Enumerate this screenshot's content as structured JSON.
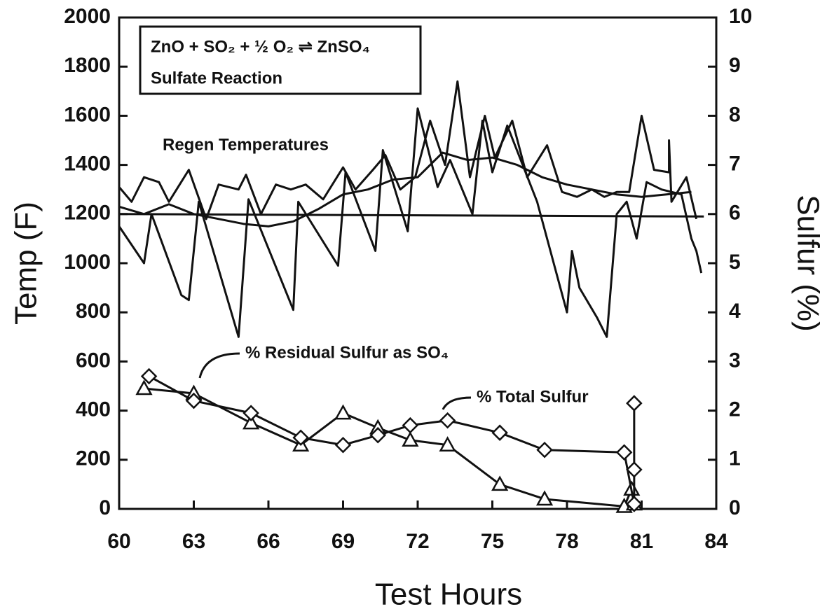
{
  "chart_data": {
    "type": "line",
    "xlabel": "Test Hours",
    "ylabel": "Temp (F)",
    "y2label": "Sulfur (%)",
    "xlim": [
      60,
      84
    ],
    "xticks": [
      60,
      63,
      66,
      69,
      72,
      75,
      78,
      81,
      84
    ],
    "ylim": [
      0,
      2000
    ],
    "yticks": [
      0,
      200,
      400,
      600,
      800,
      1000,
      1200,
      1400,
      1600,
      1800,
      2000
    ],
    "y2lim": [
      0,
      10
    ],
    "y2ticks": [
      0,
      1,
      2,
      3,
      4,
      5,
      6,
      7,
      8,
      9,
      10
    ],
    "annotations": [
      "ZnO + SO₂ + ½ O₂ ⇌ ZnSO₄",
      "Sulfate Reaction",
      "Regen Temperatures"
    ],
    "series": [
      {
        "color": "#111",
        "x": [
          60,
          61,
          61.3,
          62.5,
          62.8,
          63.2,
          64.8,
          65.2,
          67,
          67.2,
          68.8,
          69.1,
          70.3,
          70.6,
          71.6,
          72,
          72.8,
          73.3,
          74.2,
          74.6,
          75,
          75.6,
          76.8,
          77.2,
          78,
          78.2,
          78.5,
          79.2,
          79.6,
          80,
          80.4,
          80.8,
          81.2,
          81.8,
          82.6,
          83,
          83.2,
          83.4
        ],
        "values": [
          1150,
          1000,
          1200,
          870,
          850,
          1250,
          700,
          1260,
          810,
          1250,
          990,
          1370,
          1050,
          1460,
          1130,
          1630,
          1310,
          1420,
          1200,
          1580,
          1370,
          1560,
          1250,
          1100,
          800,
          1050,
          900,
          780,
          700,
          1200,
          1250,
          1100,
          1330,
          1300,
          1280,
          1100,
          1050,
          960
        ]
      },
      {
        "color": "#111",
        "x": [
          60,
          60.5,
          61,
          61.6,
          62,
          62.8,
          63.5,
          64,
          64.8,
          65.1,
          65.7,
          66.3,
          66.9,
          67.5,
          68.2,
          69,
          69.5,
          70.2,
          70.7,
          71.3,
          71.9,
          72.5,
          73.1,
          73.6,
          74.1,
          74.7,
          75.1,
          75.8,
          76.4,
          77.2,
          77.8,
          78.4,
          79,
          79.5,
          80,
          80.5,
          81,
          81.5,
          82.1,
          82.1,
          82.2,
          82.8,
          83.2
        ],
        "values": [
          1310,
          1250,
          1350,
          1330,
          1250,
          1380,
          1180,
          1320,
          1300,
          1360,
          1200,
          1320,
          1300,
          1320,
          1260,
          1390,
          1300,
          1380,
          1440,
          1300,
          1350,
          1580,
          1400,
          1740,
          1350,
          1600,
          1430,
          1580,
          1350,
          1480,
          1290,
          1270,
          1300,
          1270,
          1290,
          1290,
          1600,
          1380,
          1370,
          1500,
          1250,
          1350,
          1180
        ]
      },
      {
        "color": "#111",
        "x": [
          60,
          61,
          62,
          63,
          64,
          65,
          66,
          67,
          68,
          69,
          70,
          71,
          72,
          73,
          74,
          75,
          76,
          77,
          78,
          79,
          80,
          81,
          82,
          83
        ],
        "values": [
          1230,
          1200,
          1240,
          1200,
          1180,
          1160,
          1150,
          1170,
          1220,
          1280,
          1300,
          1340,
          1350,
          1450,
          1420,
          1430,
          1400,
          1350,
          1320,
          1300,
          1280,
          1270,
          1280,
          1290
        ]
      },
      {
        "color": "#111",
        "x": [
          60,
          83.5
        ],
        "values": [
          1200,
          1190
        ]
      },
      {
        "name": "% Residual Sulfur as SO₄",
        "color": "#111",
        "axis": "y2",
        "marker": "triangle",
        "x": [
          61,
          63,
          65.3,
          67.3,
          69,
          70.4,
          71.7,
          73.2,
          75.3,
          77.1,
          80.3,
          80.6,
          80.7
        ],
        "values": [
          2.45,
          2.35,
          1.75,
          1.3,
          1.95,
          1.65,
          1.4,
          1.3,
          0.5,
          0.2,
          0.05,
          0.4,
          0.1
        ]
      },
      {
        "name": "% Total Sulfur",
        "color": "#111",
        "axis": "y2",
        "marker": "diamond",
        "x": [
          61.2,
          63,
          65.3,
          67.3,
          69,
          70.4,
          71.7,
          73.2,
          75.3,
          77.1,
          80.3,
          80.7,
          80.7,
          80.7
        ],
        "values": [
          2.7,
          2.2,
          1.95,
          1.45,
          1.3,
          1.5,
          1.7,
          1.8,
          1.55,
          1.2,
          1.15,
          0.1,
          0.8,
          2.15
        ]
      }
    ]
  }
}
